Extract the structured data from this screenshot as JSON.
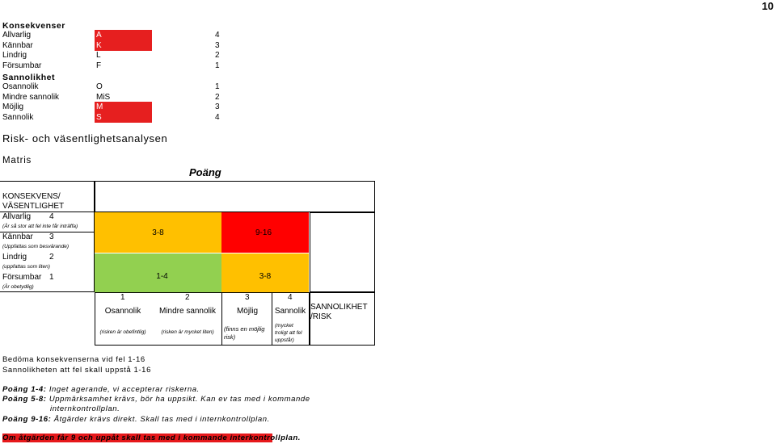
{
  "page_number": "10",
  "konsekvenser": {
    "heading": "Konsekvenser",
    "rows": [
      {
        "name": "Allvarlig",
        "code": "A",
        "value": "4",
        "highlight": true
      },
      {
        "name": "Kännbar",
        "code": "K",
        "value": "3",
        "highlight": true
      },
      {
        "name": "Lindrig",
        "code": "L",
        "value": "2",
        "highlight": false
      },
      {
        "name": "Försumbar",
        "code": "F",
        "value": "1",
        "highlight": false
      }
    ]
  },
  "sannolikhet": {
    "heading": "Sannolikhet",
    "rows": [
      {
        "name": "Osannolik",
        "code": "O",
        "value": "1",
        "highlight": false
      },
      {
        "name": "Mindre sannolik",
        "code": "MiS",
        "value": "2",
        "highlight": false
      },
      {
        "name": "Möjlig",
        "code": "M",
        "value": "3",
        "highlight": true
      },
      {
        "name": "Sannolik",
        "code": "S",
        "value": "4",
        "highlight": true
      }
    ]
  },
  "title": "Risk- och väsentlighetsanalysen",
  "matris_label": "Matris",
  "poang_label": "Poäng",
  "matrix": {
    "y_header": "KONSEKVENS/ VÄSENTLIGHET",
    "y_header_line1": "KONSEKVENS/",
    "y_header_line2": "VÄSENTLIGHET",
    "y_items": [
      {
        "name": "Allvarlig",
        "value": "4",
        "note": "(Är så stor att fel inte får inträffa)"
      },
      {
        "name": "Kännbar",
        "value": "3",
        "note": "(Uppfattas som besvärande)"
      },
      {
        "name": "Lindrig",
        "value": "2",
        "note": "(uppfattas som liten)"
      },
      {
        "name": "Försumbar",
        "value": "1",
        "note": "(Är obetydlig)"
      }
    ],
    "cells": {
      "top_left": "3-8",
      "top_right": "9-16",
      "bottom_left": "1-4",
      "bottom_right": "3-8"
    },
    "colors": {
      "red": "#ff0000",
      "orange": "#ffc000",
      "green": "#92d050"
    },
    "x_items": [
      {
        "value": "1",
        "name": "Osannolik",
        "note": "(risken är obefintlig)"
      },
      {
        "value": "2",
        "name": "Mindre sannolik",
        "note": "(risken är mycket liten)"
      },
      {
        "value": "3",
        "name": "Möjlig",
        "note": "(finns en möjlig risk)"
      },
      {
        "value": "4",
        "name": "Sannolik",
        "note": "(mycket troligt att fel uppstår)"
      }
    ],
    "x_header": "SANNOLIKHET /RISK"
  },
  "assessment": {
    "line1": "Bedöma konsekvenserna vid fel 1-16",
    "line2": "Sannolikheten att fel skall uppstå 1-16"
  },
  "points": [
    {
      "label": "Poäng 1-4:",
      "text": "Inget agerande, vi accepterar riskerna."
    },
    {
      "label": "Poäng 5-8:",
      "text": "Uppmärksamhet krävs, bör ha uppsikt. Kan ev tas med i kommande internkontrollplan."
    },
    {
      "label": "Poäng 9-16:",
      "text": "Åtgärder krävs direkt. Skall tas med i internkontrollplan."
    }
  ],
  "points_line2_cont": "internkontrollplan.",
  "points_line2_first": "Uppmärksamhet krävs, bör ha uppsikt. Kan ev tas med i kommande",
  "footer_note": "Om åtgärden får 9 och uppåt skall tas med i kommande interkontrollplan."
}
